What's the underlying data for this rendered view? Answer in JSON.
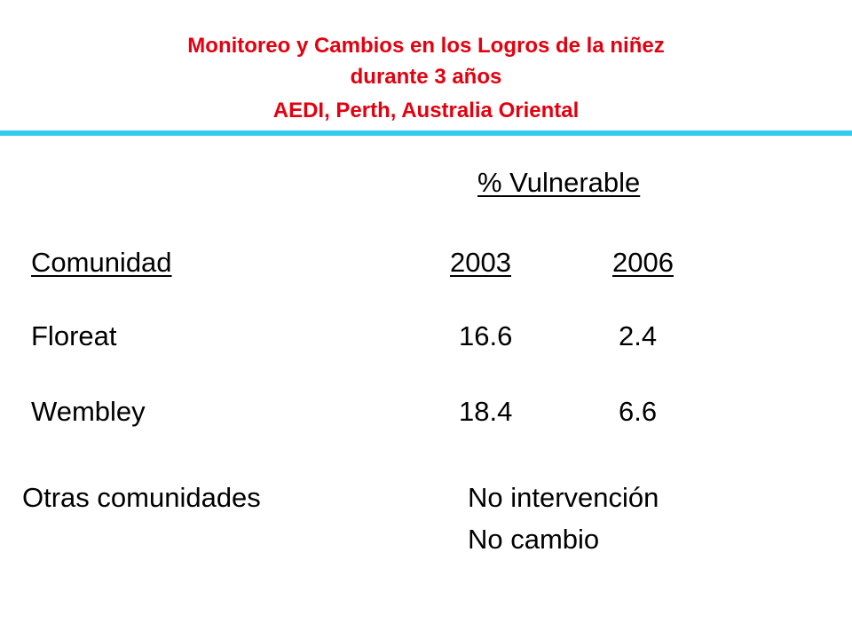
{
  "header": {
    "title_lines": [
      "Monitoreo y Cambios en los Logros de la niñez",
      "durante 3 años",
      "AEDI, Perth, Australia Oriental"
    ]
  },
  "table": {
    "group_header": "% Vulnerable",
    "columns": [
      "Comunidad",
      "2003",
      "2006"
    ],
    "rows": [
      [
        "Floreat",
        "16.6",
        "2.4"
      ],
      [
        "Wembley",
        "18.4",
        "6.6"
      ]
    ]
  },
  "note": {
    "label": "Otras comunidades",
    "lines": [
      "No intervención",
      "No cambio"
    ]
  }
}
